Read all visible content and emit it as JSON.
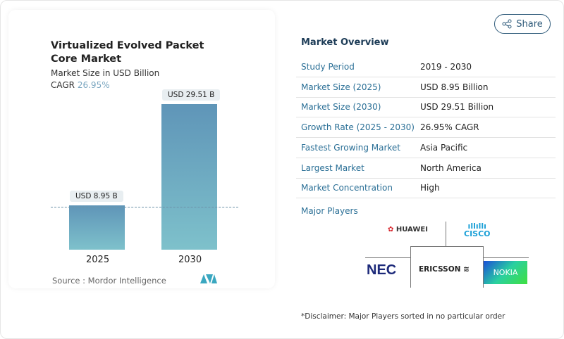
{
  "share_label": "Share",
  "chart": {
    "title": "Virtualized Evolved Packet Core Market",
    "subtitle": "Market Size in USD Billion",
    "cagr_label": "CAGR",
    "cagr_value": "26.95%",
    "source": "Source :  Mordor Intelligence"
  },
  "chart_data": {
    "type": "bar",
    "categories": [
      "2025",
      "2030"
    ],
    "values": [
      8.95,
      29.51
    ],
    "data_labels": [
      "USD 8.95 B",
      "USD 29.51 B"
    ],
    "title": "Virtualized Evolved Packet Core Market",
    "ylabel": "Market Size in USD Billion",
    "grid": false,
    "colors": [
      "#5f95b8",
      "#7ec1cb"
    ]
  },
  "overview": {
    "title": "Market Overview",
    "rows": [
      {
        "k": "Study Period",
        "v": "2019 - 2030"
      },
      {
        "k": "Market Size (2025)",
        "v": "USD 8.95 Billion"
      },
      {
        "k": "Market Size (2030)",
        "v": "USD 29.51 Billion"
      },
      {
        "k": "Growth Rate (2025 - 2030)",
        "v": "26.95% CAGR"
      },
      {
        "k": "Fastest Growing Market",
        "v": "Asia Pacific"
      },
      {
        "k": "Largest Market",
        "v": "North America"
      },
      {
        "k": "Market Concentration",
        "v": "High"
      }
    ],
    "major_players_label": "Major Players",
    "players": [
      "HUAWEI",
      "CISCO",
      "NEC",
      "ERICSSON",
      "NOKIA"
    ],
    "disclaimer": "*Disclaimer: Major Players sorted in no particular order"
  }
}
